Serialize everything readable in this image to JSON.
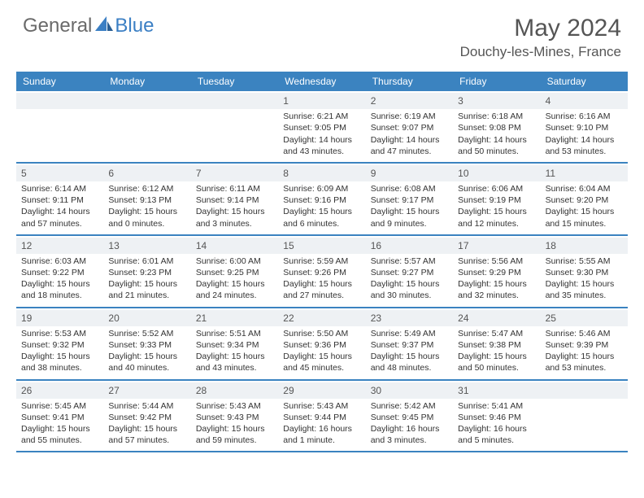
{
  "brand": {
    "general": "General",
    "blue": "Blue"
  },
  "title": {
    "month": "May 2024",
    "location": "Douchy-les-Mines, France"
  },
  "colors": {
    "header_bg": "#3b83c0",
    "header_text": "#ffffff",
    "daynum_bg": "#eef1f4",
    "text": "#333333",
    "rule": "#3b83c0",
    "logo_gray": "#6a6a6a",
    "logo_blue": "#3b7fc4"
  },
  "day_names": [
    "Sunday",
    "Monday",
    "Tuesday",
    "Wednesday",
    "Thursday",
    "Friday",
    "Saturday"
  ],
  "weeks": [
    [
      {
        "n": "",
        "lines": []
      },
      {
        "n": "",
        "lines": []
      },
      {
        "n": "",
        "lines": []
      },
      {
        "n": "1",
        "lines": [
          "Sunrise: 6:21 AM",
          "Sunset: 9:05 PM",
          "Daylight: 14 hours and 43 minutes."
        ]
      },
      {
        "n": "2",
        "lines": [
          "Sunrise: 6:19 AM",
          "Sunset: 9:07 PM",
          "Daylight: 14 hours and 47 minutes."
        ]
      },
      {
        "n": "3",
        "lines": [
          "Sunrise: 6:18 AM",
          "Sunset: 9:08 PM",
          "Daylight: 14 hours and 50 minutes."
        ]
      },
      {
        "n": "4",
        "lines": [
          "Sunrise: 6:16 AM",
          "Sunset: 9:10 PM",
          "Daylight: 14 hours and 53 minutes."
        ]
      }
    ],
    [
      {
        "n": "5",
        "lines": [
          "Sunrise: 6:14 AM",
          "Sunset: 9:11 PM",
          "Daylight: 14 hours and 57 minutes."
        ]
      },
      {
        "n": "6",
        "lines": [
          "Sunrise: 6:12 AM",
          "Sunset: 9:13 PM",
          "Daylight: 15 hours and 0 minutes."
        ]
      },
      {
        "n": "7",
        "lines": [
          "Sunrise: 6:11 AM",
          "Sunset: 9:14 PM",
          "Daylight: 15 hours and 3 minutes."
        ]
      },
      {
        "n": "8",
        "lines": [
          "Sunrise: 6:09 AM",
          "Sunset: 9:16 PM",
          "Daylight: 15 hours and 6 minutes."
        ]
      },
      {
        "n": "9",
        "lines": [
          "Sunrise: 6:08 AM",
          "Sunset: 9:17 PM",
          "Daylight: 15 hours and 9 minutes."
        ]
      },
      {
        "n": "10",
        "lines": [
          "Sunrise: 6:06 AM",
          "Sunset: 9:19 PM",
          "Daylight: 15 hours and 12 minutes."
        ]
      },
      {
        "n": "11",
        "lines": [
          "Sunrise: 6:04 AM",
          "Sunset: 9:20 PM",
          "Daylight: 15 hours and 15 minutes."
        ]
      }
    ],
    [
      {
        "n": "12",
        "lines": [
          "Sunrise: 6:03 AM",
          "Sunset: 9:22 PM",
          "Daylight: 15 hours and 18 minutes."
        ]
      },
      {
        "n": "13",
        "lines": [
          "Sunrise: 6:01 AM",
          "Sunset: 9:23 PM",
          "Daylight: 15 hours and 21 minutes."
        ]
      },
      {
        "n": "14",
        "lines": [
          "Sunrise: 6:00 AM",
          "Sunset: 9:25 PM",
          "Daylight: 15 hours and 24 minutes."
        ]
      },
      {
        "n": "15",
        "lines": [
          "Sunrise: 5:59 AM",
          "Sunset: 9:26 PM",
          "Daylight: 15 hours and 27 minutes."
        ]
      },
      {
        "n": "16",
        "lines": [
          "Sunrise: 5:57 AM",
          "Sunset: 9:27 PM",
          "Daylight: 15 hours and 30 minutes."
        ]
      },
      {
        "n": "17",
        "lines": [
          "Sunrise: 5:56 AM",
          "Sunset: 9:29 PM",
          "Daylight: 15 hours and 32 minutes."
        ]
      },
      {
        "n": "18",
        "lines": [
          "Sunrise: 5:55 AM",
          "Sunset: 9:30 PM",
          "Daylight: 15 hours and 35 minutes."
        ]
      }
    ],
    [
      {
        "n": "19",
        "lines": [
          "Sunrise: 5:53 AM",
          "Sunset: 9:32 PM",
          "Daylight: 15 hours and 38 minutes."
        ]
      },
      {
        "n": "20",
        "lines": [
          "Sunrise: 5:52 AM",
          "Sunset: 9:33 PM",
          "Daylight: 15 hours and 40 minutes."
        ]
      },
      {
        "n": "21",
        "lines": [
          "Sunrise: 5:51 AM",
          "Sunset: 9:34 PM",
          "Daylight: 15 hours and 43 minutes."
        ]
      },
      {
        "n": "22",
        "lines": [
          "Sunrise: 5:50 AM",
          "Sunset: 9:36 PM",
          "Daylight: 15 hours and 45 minutes."
        ]
      },
      {
        "n": "23",
        "lines": [
          "Sunrise: 5:49 AM",
          "Sunset: 9:37 PM",
          "Daylight: 15 hours and 48 minutes."
        ]
      },
      {
        "n": "24",
        "lines": [
          "Sunrise: 5:47 AM",
          "Sunset: 9:38 PM",
          "Daylight: 15 hours and 50 minutes."
        ]
      },
      {
        "n": "25",
        "lines": [
          "Sunrise: 5:46 AM",
          "Sunset: 9:39 PM",
          "Daylight: 15 hours and 53 minutes."
        ]
      }
    ],
    [
      {
        "n": "26",
        "lines": [
          "Sunrise: 5:45 AM",
          "Sunset: 9:41 PM",
          "Daylight: 15 hours and 55 minutes."
        ]
      },
      {
        "n": "27",
        "lines": [
          "Sunrise: 5:44 AM",
          "Sunset: 9:42 PM",
          "Daylight: 15 hours and 57 minutes."
        ]
      },
      {
        "n": "28",
        "lines": [
          "Sunrise: 5:43 AM",
          "Sunset: 9:43 PM",
          "Daylight: 15 hours and 59 minutes."
        ]
      },
      {
        "n": "29",
        "lines": [
          "Sunrise: 5:43 AM",
          "Sunset: 9:44 PM",
          "Daylight: 16 hours and 1 minute."
        ]
      },
      {
        "n": "30",
        "lines": [
          "Sunrise: 5:42 AM",
          "Sunset: 9:45 PM",
          "Daylight: 16 hours and 3 minutes."
        ]
      },
      {
        "n": "31",
        "lines": [
          "Sunrise: 5:41 AM",
          "Sunset: 9:46 PM",
          "Daylight: 16 hours and 5 minutes."
        ]
      },
      {
        "n": "",
        "lines": []
      }
    ]
  ]
}
